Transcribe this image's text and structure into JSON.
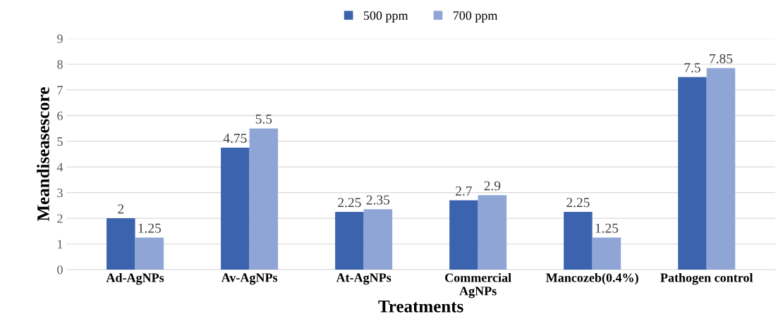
{
  "chart_data": {
    "type": "bar",
    "xlabel": "Treatments",
    "ylabel": "Meandiseasescore",
    "categories": [
      "Ad-AgNPs",
      "Av-AgNPs",
      "At-AgNPs",
      "Commercial\nAgNPs",
      "Mancozeb(0.4%)",
      "Pathogen control"
    ],
    "series": [
      {
        "name": "500 ppm",
        "color": "#3c64ae",
        "values": [
          2,
          4.75,
          2.25,
          2.7,
          2.25,
          7.5
        ]
      },
      {
        "name": "700 ppm",
        "color": "#8fa5d6",
        "values": [
          1.25,
          5.5,
          2.35,
          2.9,
          1.25,
          7.85
        ]
      }
    ],
    "ylim": [
      0,
      9
    ],
    "yticks": [
      0,
      1,
      2,
      3,
      4,
      5,
      6,
      7,
      8,
      9
    ],
    "grid": "y",
    "legend": "top",
    "data_labels": true
  }
}
